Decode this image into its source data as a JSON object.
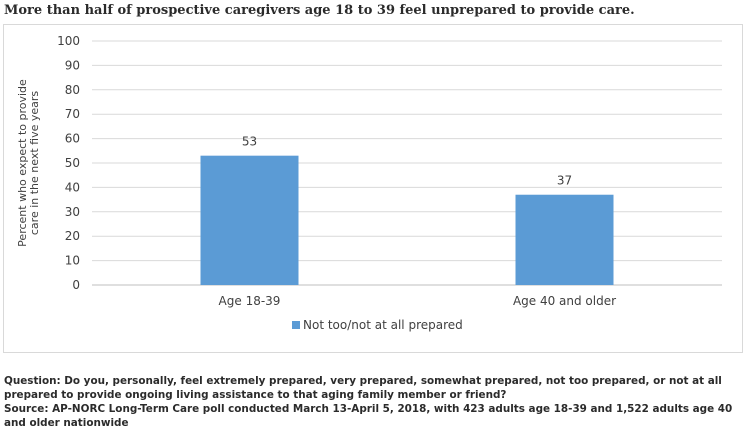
{
  "title": "More than half of prospective caregivers age 18 to 39 feel unprepared to provide care.",
  "chart_data": {
    "type": "bar",
    "categories": [
      "Age 18-39",
      "Age 40 and older"
    ],
    "series": [
      {
        "name": "Not too/not at all prepared",
        "values": [
          53,
          37
        ],
        "color": "#5b9bd5"
      }
    ],
    "ylabel_lines": [
      "Percent who expect to provide",
      "care in the next five years"
    ],
    "xlabel": "",
    "ylim": [
      0,
      100
    ],
    "yticks": [
      "0",
      "10",
      "20",
      "30",
      "40",
      "50",
      "60",
      "70",
      "80",
      "90",
      "100"
    ],
    "data_labels": [
      "53",
      "37"
    ],
    "grid": true,
    "legend_position": "bottom"
  },
  "footer": {
    "question": "Question: Do you, personally, feel extremely prepared, very prepared, somewhat prepared, not too prepared, or not at all prepared to provide ongoing living assistance to that aging family member or friend?",
    "source": "Source: AP-NORC Long-Term Care poll conducted March 13-April 5, 2018, with 423 adults age 18-39 and 1,522 adults age 40 and older nationwide"
  }
}
